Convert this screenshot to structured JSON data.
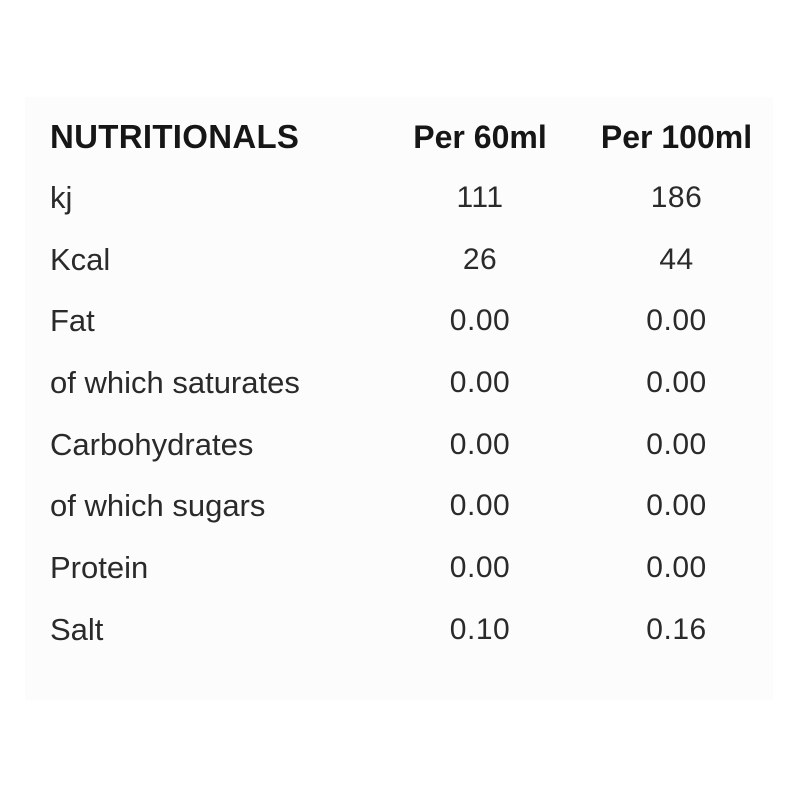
{
  "table": {
    "header": {
      "col1": "NUTRITIONALS",
      "col2": "Per 60ml",
      "col3": "Per 100ml"
    },
    "rows": [
      {
        "label": "kj",
        "per60": "111",
        "per100": "186"
      },
      {
        "label": "Kcal",
        "per60": "26",
        "per100": "44"
      },
      {
        "label": "Fat",
        "per60": "0.00",
        "per100": "0.00"
      },
      {
        "label": "of which saturates",
        "per60": "0.00",
        "per100": "0.00"
      },
      {
        "label": "Carbohydrates",
        "per60": "0.00",
        "per100": "0.00"
      },
      {
        "label": "of which sugars",
        "per60": "0.00",
        "per100": "0.00"
      },
      {
        "label": "Protein",
        "per60": "0.00",
        "per100": "0.00"
      },
      {
        "label": "Salt",
        "per60": "0.10",
        "per100": "0.16"
      }
    ],
    "colors": {
      "page_bg": "#ffffff",
      "card_bg": "#fcfcfc",
      "header_text": "#161616",
      "body_text": "#2a2a2a"
    }
  }
}
